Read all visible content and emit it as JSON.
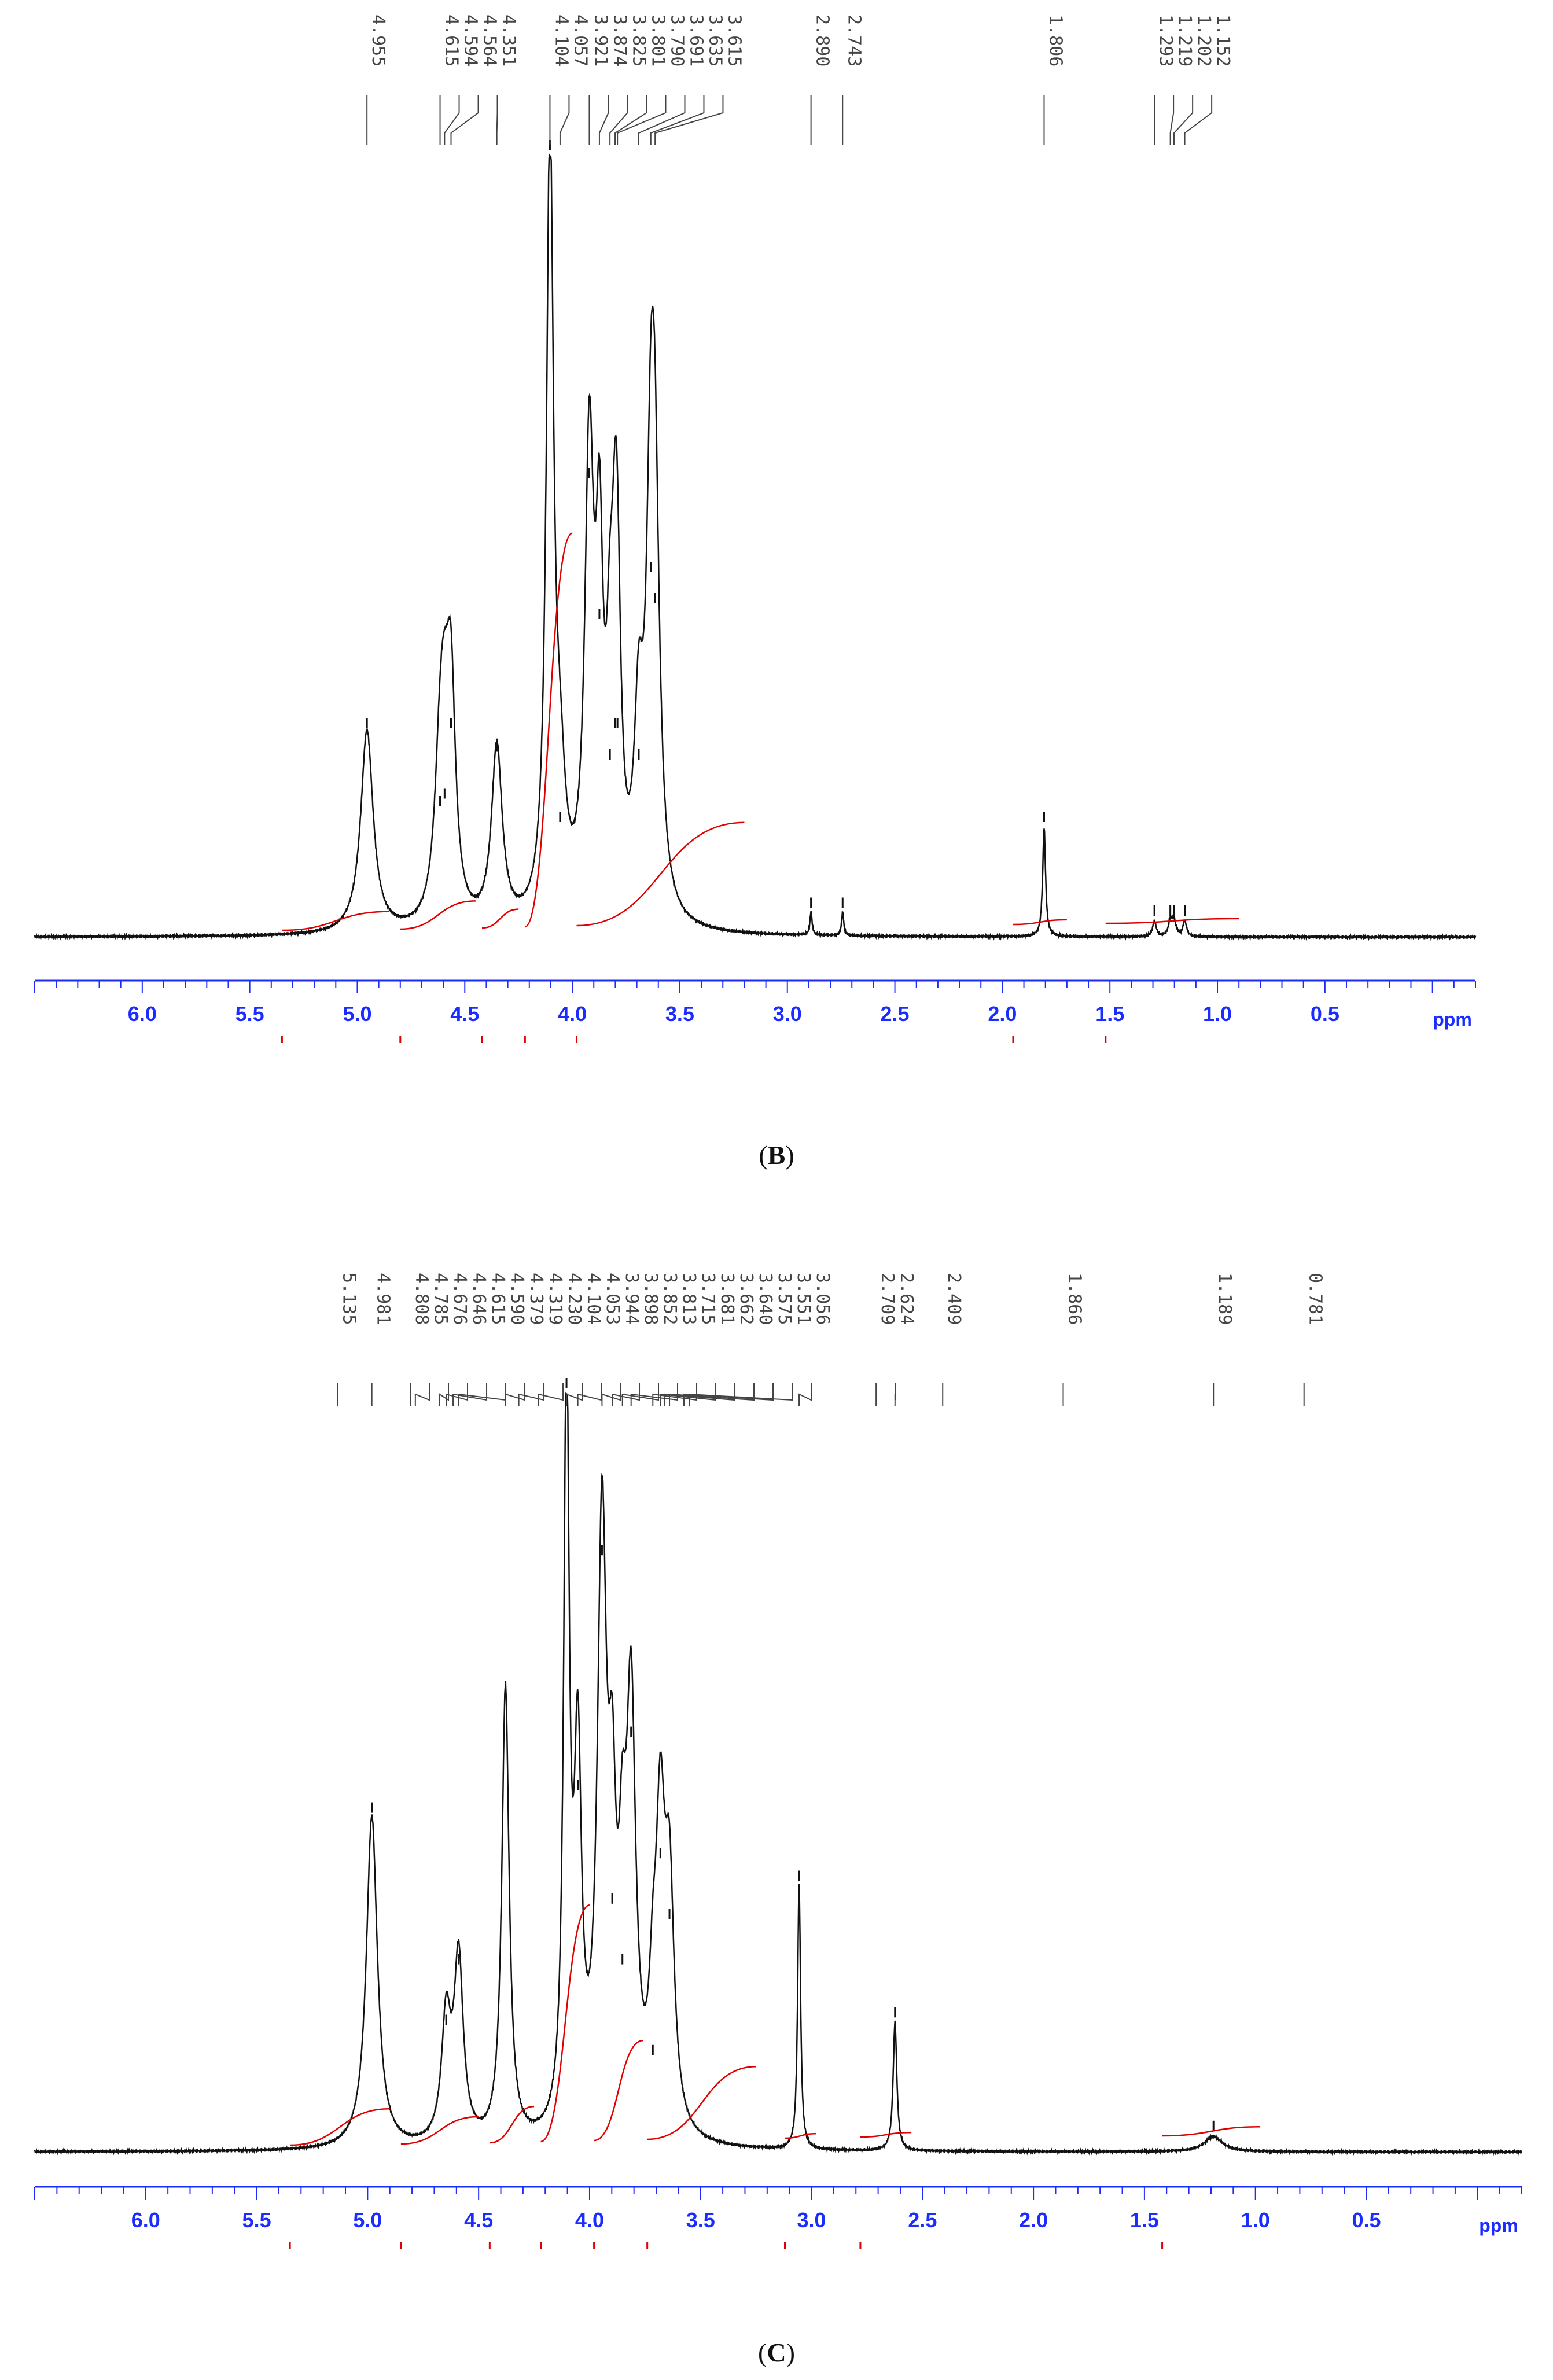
{
  "colors": {
    "spectrum": "#111111",
    "integral": "#e00000",
    "axis": "#1a2cff",
    "peak_list": "#444444"
  },
  "chart_data": [
    {
      "panel": "B",
      "type": "line",
      "xlabel": "ppm",
      "xlim": [
        6.5,
        -0.2
      ],
      "ylim": [
        0,
        100
      ],
      "axis_reversed": true,
      "ticks": [
        6.0,
        5.5,
        5.0,
        4.5,
        4.0,
        3.5,
        3.0,
        2.5,
        2.0,
        1.5,
        1.0,
        0.5
      ],
      "tick_labels": [
        "6.0",
        "5.5",
        "5.0",
        "4.5",
        "4.0",
        "3.5",
        "3.0",
        "2.5",
        "2.0",
        "1.5",
        "1.0",
        "0.5"
      ],
      "peak_labels": [
        "4.955",
        "4.615",
        "4.594",
        "4.564",
        "4.351",
        "4.104",
        "4.057",
        "3.921",
        "3.874",
        "3.825",
        "3.801",
        "3.790",
        "3.691",
        "3.635",
        "3.615",
        "2.890",
        "2.743",
        "1.806",
        "1.293",
        "1.219",
        "1.202",
        "1.152"
      ],
      "peaks": [
        {
          "ppm": 4.955,
          "height": 26,
          "width": 0.035
        },
        {
          "ppm": 4.615,
          "height": 16,
          "width": 0.03
        },
        {
          "ppm": 4.594,
          "height": 17,
          "width": 0.03
        },
        {
          "ppm": 4.564,
          "height": 26,
          "width": 0.025
        },
        {
          "ppm": 4.351,
          "height": 23,
          "width": 0.03
        },
        {
          "ppm": 4.104,
          "height": 100,
          "width": 0.02
        },
        {
          "ppm": 4.057,
          "height": 14,
          "width": 0.03
        },
        {
          "ppm": 3.921,
          "height": 58,
          "width": 0.025
        },
        {
          "ppm": 3.874,
          "height": 40,
          "width": 0.02
        },
        {
          "ppm": 3.825,
          "height": 22,
          "width": 0.02
        },
        {
          "ppm": 3.801,
          "height": 26,
          "width": 0.02
        },
        {
          "ppm": 3.79,
          "height": 26,
          "width": 0.02
        },
        {
          "ppm": 3.691,
          "height": 22,
          "width": 0.025
        },
        {
          "ppm": 3.635,
          "height": 46,
          "width": 0.025
        },
        {
          "ppm": 3.615,
          "height": 42,
          "width": 0.025
        },
        {
          "ppm": 2.89,
          "height": 3,
          "width": 0.006
        },
        {
          "ppm": 2.743,
          "height": 3,
          "width": 0.006
        },
        {
          "ppm": 1.806,
          "height": 14,
          "width": 0.008
        },
        {
          "ppm": 1.293,
          "height": 2,
          "width": 0.01
        },
        {
          "ppm": 1.219,
          "height": 2,
          "width": 0.01
        },
        {
          "ppm": 1.202,
          "height": 2,
          "width": 0.01
        },
        {
          "ppm": 1.152,
          "height": 2,
          "width": 0.01
        }
      ],
      "integral_segments": [
        {
          "from": 5.35,
          "to": 4.85,
          "rise": 2
        },
        {
          "from": 4.8,
          "to": 4.45,
          "rise": 3
        },
        {
          "from": 4.42,
          "to": 4.25,
          "rise": 2
        },
        {
          "from": 4.22,
          "to": 4.0,
          "rise": 42
        },
        {
          "from": 3.98,
          "to": 3.2,
          "rise": 11
        },
        {
          "from": 1.95,
          "to": 1.7,
          "rise": 0.5
        },
        {
          "from": 1.52,
          "to": 0.9,
          "rise": 0.5
        }
      ]
    },
    {
      "panel": "C",
      "type": "line",
      "xlabel": "ppm",
      "xlim": [
        6.5,
        -0.2
      ],
      "ylim": [
        0,
        100
      ],
      "axis_reversed": true,
      "ticks": [
        6.0,
        5.5,
        5.0,
        4.5,
        4.0,
        3.5,
        3.0,
        2.5,
        2.0,
        1.5,
        1.0,
        0.5
      ],
      "tick_labels": [
        "6.0",
        "5.5",
        "5.0",
        "4.5",
        "4.0",
        "3.5",
        "3.0",
        "2.5",
        "2.0",
        "1.5",
        "1.0",
        "0.5"
      ],
      "peak_labels": [
        "5.135",
        "4.981",
        "4.808",
        "4.785",
        "4.676",
        "4.646",
        "4.615",
        "4.590",
        "4.379",
        "4.319",
        "4.230",
        "4.104",
        "4.053",
        "3.944",
        "3.898",
        "3.852",
        "3.813",
        "3.715",
        "3.681",
        "3.662",
        "3.640",
        "3.575",
        "3.551",
        "3.056",
        "2.709",
        "2.624",
        "2.409",
        "1.866",
        "1.189",
        "0.781"
      ],
      "peaks": [
        {
          "ppm": 4.981,
          "height": 44,
          "width": 0.03
        },
        {
          "ppm": 4.646,
          "height": 16,
          "width": 0.025
        },
        {
          "ppm": 4.59,
          "height": 24,
          "width": 0.025
        },
        {
          "ppm": 4.379,
          "height": 60,
          "width": 0.02
        },
        {
          "ppm": 4.104,
          "height": 100,
          "width": 0.015
        },
        {
          "ppm": 4.053,
          "height": 47,
          "width": 0.02
        },
        {
          "ppm": 3.944,
          "height": 78,
          "width": 0.025
        },
        {
          "ppm": 3.898,
          "height": 32,
          "width": 0.02
        },
        {
          "ppm": 3.852,
          "height": 24,
          "width": 0.02
        },
        {
          "ppm": 3.813,
          "height": 54,
          "width": 0.025
        },
        {
          "ppm": 3.715,
          "height": 12,
          "width": 0.02
        },
        {
          "ppm": 3.681,
          "height": 38,
          "width": 0.025
        },
        {
          "ppm": 3.64,
          "height": 30,
          "width": 0.025
        },
        {
          "ppm": 3.056,
          "height": 35,
          "width": 0.008
        },
        {
          "ppm": 2.624,
          "height": 17,
          "width": 0.01
        },
        {
          "ppm": 1.189,
          "height": 2,
          "width": 0.05
        }
      ],
      "integral_segments": [
        {
          "from": 5.35,
          "to": 4.9,
          "rise": 4
        },
        {
          "from": 4.85,
          "to": 4.5,
          "rise": 3
        },
        {
          "from": 4.45,
          "to": 4.25,
          "rise": 4
        },
        {
          "from": 4.22,
          "to": 4.0,
          "rise": 26
        },
        {
          "from": 3.98,
          "to": 3.76,
          "rise": 11
        },
        {
          "from": 3.74,
          "to": 3.25,
          "rise": 8
        },
        {
          "from": 3.12,
          "to": 2.98,
          "rise": 0.5
        },
        {
          "from": 2.78,
          "to": 2.55,
          "rise": 0.5
        },
        {
          "from": 1.42,
          "to": 0.98,
          "rise": 1
        }
      ]
    }
  ],
  "captions": {
    "B": "B",
    "C": "C"
  }
}
